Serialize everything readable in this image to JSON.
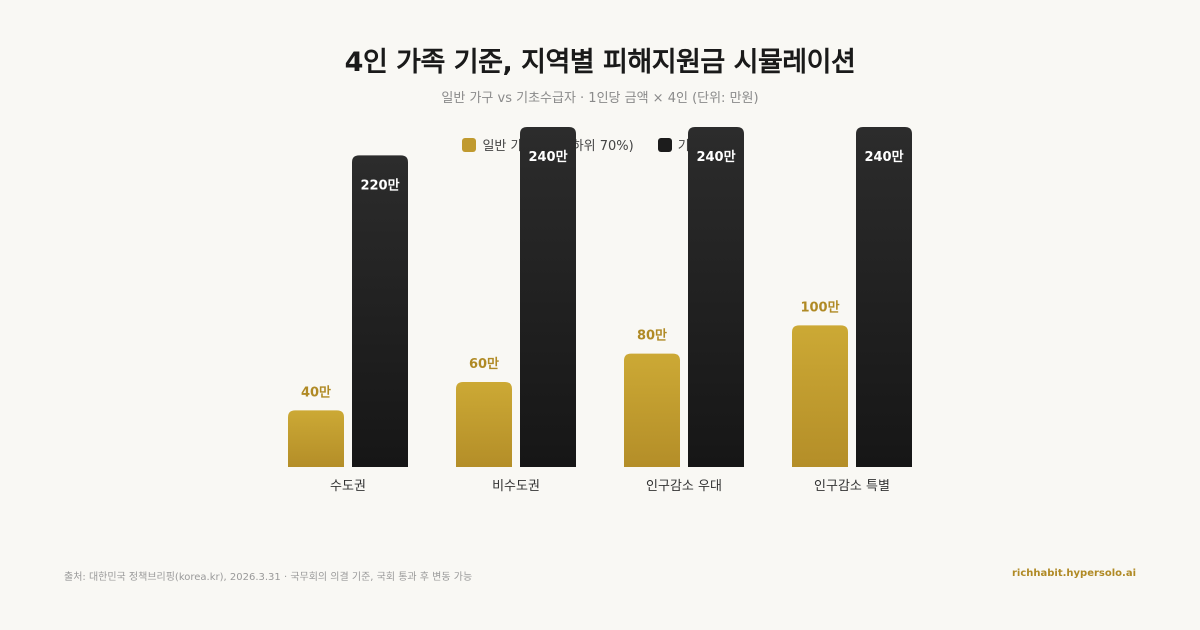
{
  "header": {
    "title": "4인 가족 기준, 지역별 피해지원금 시뮬레이션",
    "subtitle": "일반 가구 vs 기초수급자 · 1인당 금액 × 4인 (단위: 만원)"
  },
  "legend": [
    {
      "label": "일반 가구 (소득 하위 70%)",
      "color": "#c09a2f"
    },
    {
      "label": "기초수급자",
      "color": "#1c1c1c"
    }
  ],
  "colors": {
    "gold_top": "#cca935",
    "gold_bottom": "#b48e28",
    "dark_top": "#2c2c2c",
    "dark_bottom": "#161616",
    "gold_label": "#b08a25"
  },
  "chart_data": {
    "type": "bar",
    "categories": [
      "수도권",
      "비수도권",
      "인구감소 우대",
      "인구감소 특별"
    ],
    "series": [
      {
        "name": "일반 가구 (소득 하위 70%)",
        "values": [
          40,
          60,
          80,
          100
        ],
        "labels": [
          "40만",
          "60만",
          "80만",
          "100만"
        ]
      },
      {
        "name": "기초수급자",
        "values": [
          220,
          240,
          240,
          240
        ],
        "labels": [
          "220만",
          "240만",
          "240만",
          "240만"
        ]
      }
    ],
    "ylim": [
      0,
      240
    ],
    "grid": false,
    "legend_position": "top-center"
  },
  "footer": {
    "source": "출처: 대한민국 정책브리핑(korea.kr), 2026.3.31 · 국무회의 의결 기준, 국회 통과 후 변동 가능",
    "site": "richhabit.hypersolo.ai"
  }
}
